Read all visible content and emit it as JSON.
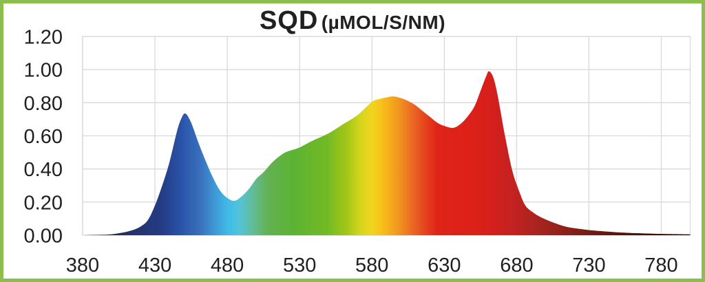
{
  "colors": {
    "frame_border": "#8CBE4B",
    "grid": "#d9d9d9",
    "text": "#1f1f1f",
    "background": "#ffffff"
  },
  "chart_data": {
    "type": "area",
    "title_main": "SQD",
    "title_unit": "(µMOL/S/NM)",
    "title_full": "SQD (µMOL/S/NM)",
    "xlabel": "",
    "ylabel": "",
    "xlim": [
      380,
      800
    ],
    "ylim": [
      0,
      1.2
    ],
    "grid": true,
    "legend": "none",
    "x_ticks": [
      380,
      430,
      480,
      530,
      580,
      630,
      680,
      730,
      780
    ],
    "y_ticks": [
      0,
      0.2,
      0.4,
      0.6,
      0.8,
      1.0,
      1.2
    ],
    "y_tick_labels": [
      "0.00",
      "0.20",
      "0.40",
      "0.60",
      "0.80",
      "1.00",
      "1.20"
    ],
    "x": [
      380,
      395,
      400,
      405,
      410,
      415,
      420,
      425,
      430,
      435,
      440,
      445,
      448,
      451,
      455,
      460,
      465,
      470,
      475,
      480,
      485,
      490,
      495,
      500,
      505,
      510,
      515,
      520,
      525,
      530,
      540,
      550,
      560,
      570,
      580,
      585,
      590,
      595,
      600,
      605,
      610,
      615,
      620,
      625,
      630,
      636,
      641,
      646,
      651,
      655,
      659,
      661,
      664,
      667,
      672,
      677,
      682,
      686,
      691,
      696,
      705,
      715,
      725,
      734,
      753,
      772,
      786,
      800
    ],
    "values": [
      0,
      0.003,
      0.006,
      0.012,
      0.02,
      0.032,
      0.052,
      0.09,
      0.18,
      0.3,
      0.44,
      0.62,
      0.7,
      0.735,
      0.68,
      0.56,
      0.45,
      0.35,
      0.27,
      0.225,
      0.207,
      0.235,
      0.28,
      0.34,
      0.38,
      0.43,
      0.47,
      0.5,
      0.515,
      0.53,
      0.575,
      0.615,
      0.67,
      0.725,
      0.805,
      0.822,
      0.832,
      0.838,
      0.828,
      0.81,
      0.785,
      0.75,
      0.715,
      0.68,
      0.66,
      0.648,
      0.67,
      0.715,
      0.78,
      0.87,
      0.96,
      0.99,
      0.95,
      0.84,
      0.6,
      0.39,
      0.26,
      0.18,
      0.14,
      0.112,
      0.078,
      0.05,
      0.037,
      0.028,
      0.016,
      0.01,
      0.007,
      0.005
    ],
    "peaks": [
      {
        "nm": 451,
        "value": 0.735,
        "label": "blue peak"
      },
      {
        "nm": 595,
        "value": 0.838,
        "label": "amber hump"
      },
      {
        "nm": 661,
        "value": 0.99,
        "label": "red peak"
      }
    ],
    "spectrum_gradient": [
      {
        "nm": 395,
        "color": "#1d2753"
      },
      {
        "nm": 411,
        "color": "#252f66"
      },
      {
        "nm": 435,
        "color": "#243c85"
      },
      {
        "nm": 449,
        "color": "#2a55ab"
      },
      {
        "nm": 461,
        "color": "#3a6fbc"
      },
      {
        "nm": 473,
        "color": "#3e9fd8"
      },
      {
        "nm": 481,
        "color": "#41bce8"
      },
      {
        "nm": 489,
        "color": "#55c3d5"
      },
      {
        "nm": 499,
        "color": "#63bb8e"
      },
      {
        "nm": 508,
        "color": "#63b153"
      },
      {
        "nm": 525,
        "color": "#5cb233"
      },
      {
        "nm": 549,
        "color": "#72ba25"
      },
      {
        "nm": 563,
        "color": "#a4c717"
      },
      {
        "nm": 572,
        "color": "#d6d51d"
      },
      {
        "nm": 580,
        "color": "#f0d51e"
      },
      {
        "nm": 587,
        "color": "#f7c01a"
      },
      {
        "nm": 596,
        "color": "#f2a01e"
      },
      {
        "nm": 606,
        "color": "#ec7222"
      },
      {
        "nm": 615,
        "color": "#e64a20"
      },
      {
        "nm": 625,
        "color": "#e02418"
      },
      {
        "nm": 658,
        "color": "#da1f1a"
      },
      {
        "nm": 677,
        "color": "#c42220"
      },
      {
        "nm": 696,
        "color": "#a62420"
      },
      {
        "nm": 715,
        "color": "#8c2018"
      },
      {
        "nm": 734,
        "color": "#6f1c12"
      },
      {
        "nm": 753,
        "color": "#571509"
      },
      {
        "nm": 772,
        "color": "#431008"
      },
      {
        "nm": 800,
        "color": "#380c07"
      }
    ]
  }
}
